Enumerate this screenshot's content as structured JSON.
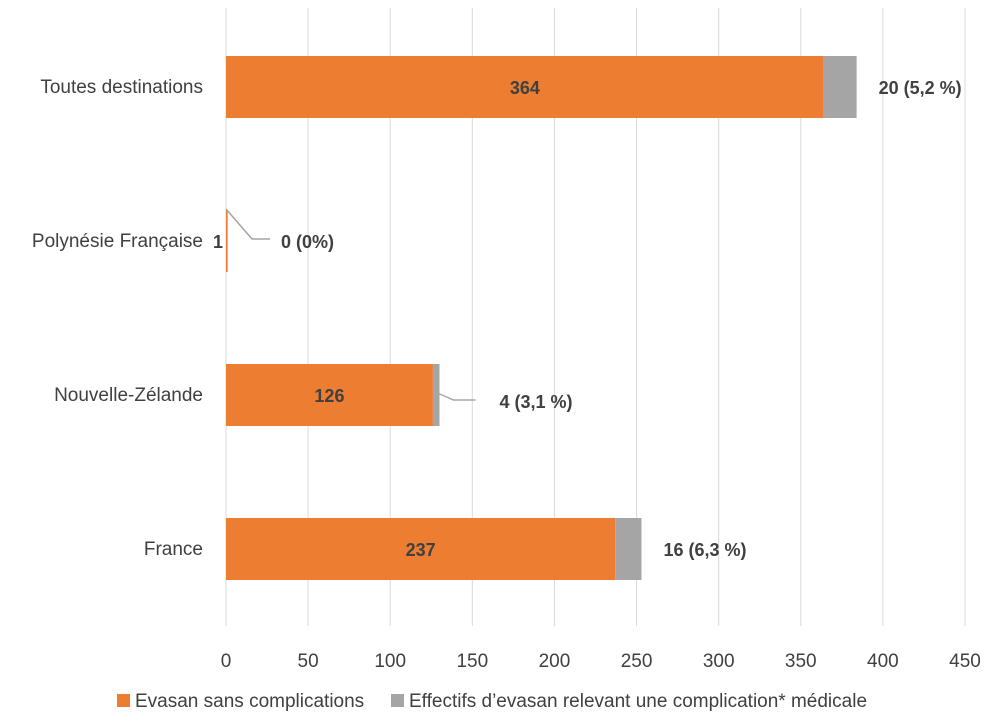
{
  "chart_data": {
    "type": "bar",
    "orientation": "horizontal",
    "stacked": true,
    "categories": [
      "France",
      "Nouvelle-Zélande",
      "Polynésie Française",
      "Toutes destinations"
    ],
    "series": [
      {
        "name": "Evasan sans complications",
        "color": "#ED7D31",
        "values": [
          237,
          126,
          1,
          364
        ],
        "labels": [
          "237",
          "126",
          "1",
          "364"
        ]
      },
      {
        "name": "Effectifs d’evasan relevant une complication* médicale",
        "color": "#A5A5A5",
        "values": [
          16,
          4,
          0,
          20
        ],
        "labels": [
          "16 (6,3 %)",
          "4 (3,1 %)",
          "0 (0%)",
          "20 (5,2 %)"
        ]
      }
    ],
    "xlim": [
      0,
      450
    ],
    "xticks": [
      0,
      50,
      100,
      150,
      200,
      250,
      300,
      350,
      400,
      450
    ],
    "grid": "vertical",
    "legend": "bottom",
    "title": "",
    "xlabel": "",
    "ylabel": ""
  }
}
